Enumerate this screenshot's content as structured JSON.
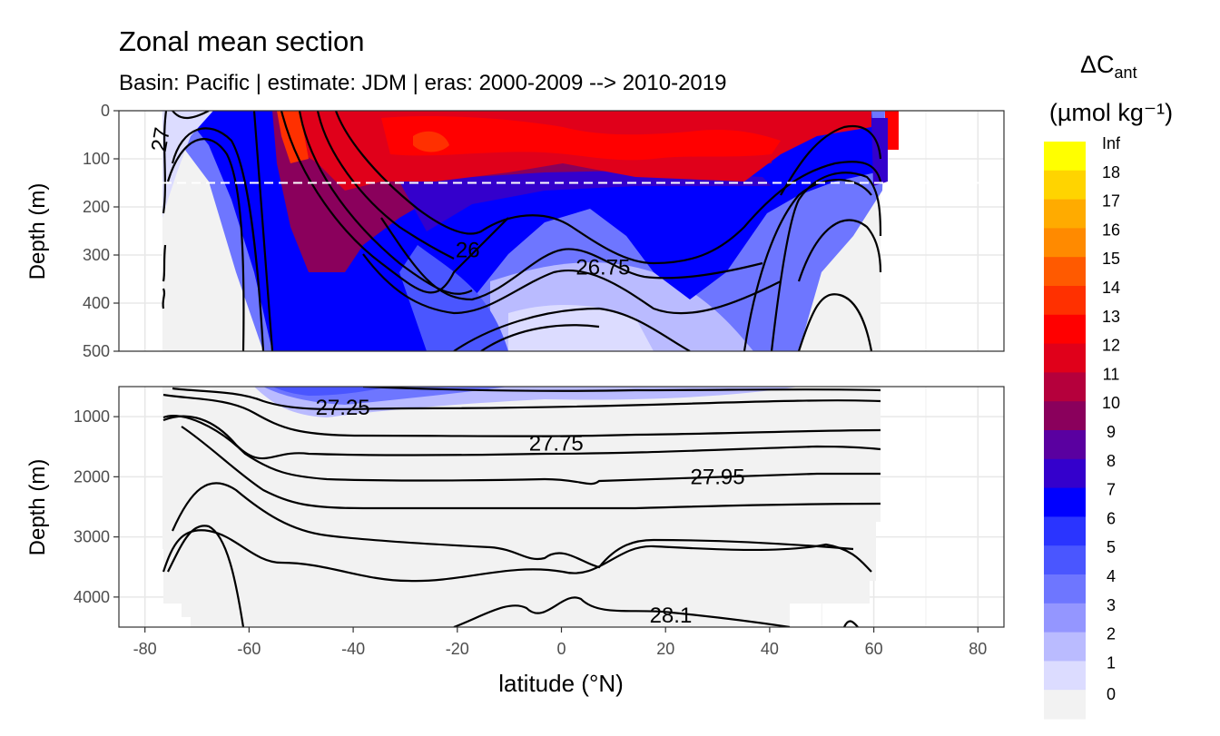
{
  "chart_data": {
    "type": "heatmap",
    "title": "Zonal mean section",
    "subtitle": "Basin: Pacific | estimate: JDM  | eras: 2000-2009 --> 2010-2019",
    "xlabel": "latitude (°N)",
    "ylabel_top": "Depth (m)",
    "ylabel_bottom": "Depth (m)",
    "xlim": [
      -85,
      85
    ],
    "x_ticks": [
      "-80",
      "-60",
      "-40",
      "-20",
      "0",
      "20",
      "40",
      "60",
      "80"
    ],
    "x_tick_values": [
      -80,
      -60,
      -40,
      -20,
      0,
      20,
      40,
      60,
      80
    ],
    "panels": [
      {
        "name": "upper",
        "ylim": [
          0,
          500
        ],
        "y_ticks": [
          "0",
          "100",
          "200",
          "300",
          "400",
          "500"
        ],
        "y_tick_values": [
          0,
          100,
          200,
          300,
          400,
          500
        ]
      },
      {
        "name": "lower",
        "ylim": [
          500,
          4500
        ],
        "y_ticks": [
          "1000",
          "2000",
          "3000",
          "4000"
        ],
        "y_tick_values": [
          1000,
          2000,
          3000,
          4000
        ]
      }
    ],
    "reference_line_depth_m": 150,
    "legend": {
      "title_main": "ΔC",
      "title_sub": "ant",
      "unit": "(µmol kg⁻¹)",
      "labels": [
        "Inf",
        "18",
        "17",
        "16",
        "15",
        "14",
        "13",
        "12",
        "11",
        "10",
        "9",
        "8",
        "7",
        "6",
        "5",
        "4",
        "3",
        "2",
        "1",
        "0"
      ],
      "colors": [
        "#ffff00",
        "#ffd400",
        "#ffab00",
        "#ff8a00",
        "#ff5a00",
        "#ff3000",
        "#ff0000",
        "#e0001a",
        "#b5003c",
        "#8a005c",
        "#5a00a0",
        "#3400cc",
        "#0000ff",
        "#2a34ff",
        "#4a56ff",
        "#6e76ff",
        "#9496ff",
        "#babbff",
        "#dcdcff",
        "#f2f2f2"
      ]
    },
    "contour_labels": [
      {
        "text": "26",
        "lat": -18,
        "depth": 290
      },
      {
        "text": "26.75",
        "lat": 8,
        "depth": 325
      },
      {
        "text": "27.25",
        "lat": -42,
        "depth": 850
      },
      {
        "text": "27.75",
        "lat": -1,
        "depth": 1440
      },
      {
        "text": "27.95",
        "lat": 30,
        "depth": 2000
      },
      {
        "text": "28.1",
        "lat": 21,
        "depth": 4300
      },
      {
        "text": "27",
        "lat": -77,
        "depth": 60
      }
    ]
  }
}
